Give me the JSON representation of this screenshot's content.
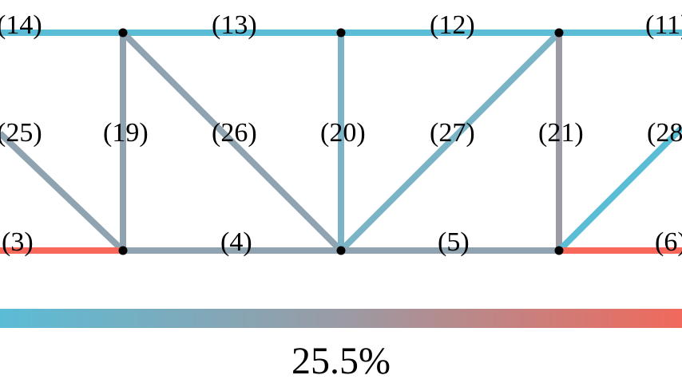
{
  "diagram": {
    "members": [
      {
        "id": "m14",
        "label": "(14)",
        "color": "#5bbcd6"
      },
      {
        "id": "m13",
        "label": "(13)",
        "color": "#5bbcd6"
      },
      {
        "id": "m12",
        "label": "(12)",
        "color": "#5bbcd6"
      },
      {
        "id": "m11",
        "label": "(11)",
        "color": "#5bbcd6"
      },
      {
        "id": "m25",
        "label": "(25)",
        "color": "#8fa3b1"
      },
      {
        "id": "m19",
        "label": "(19)",
        "color": "#8fa3b1"
      },
      {
        "id": "m26",
        "label": "(26)",
        "color": "#8fa3b1"
      },
      {
        "id": "m20",
        "label": "(20)",
        "color": "#7ab4c6"
      },
      {
        "id": "m27",
        "label": "(27)",
        "color": "#7ab4c6"
      },
      {
        "id": "m21",
        "label": "(21)",
        "color": "#9a9ba5"
      },
      {
        "id": "m28",
        "label": "(28)",
        "color": "#5bbcd6"
      },
      {
        "id": "m3",
        "label": "(3)",
        "color": "#f8685a"
      },
      {
        "id": "m4",
        "label": "(4)",
        "color": "#8fa3b1"
      },
      {
        "id": "m5",
        "label": "(5)",
        "color": "#8fa3b1"
      },
      {
        "id": "m6",
        "label": "(6)",
        "color": "#f8685a"
      }
    ]
  },
  "colorbar": {
    "label": "25.5%",
    "color_start": "#5bbcd6",
    "color_mid": "#9a9ba5",
    "color_end": "#f0695c"
  }
}
